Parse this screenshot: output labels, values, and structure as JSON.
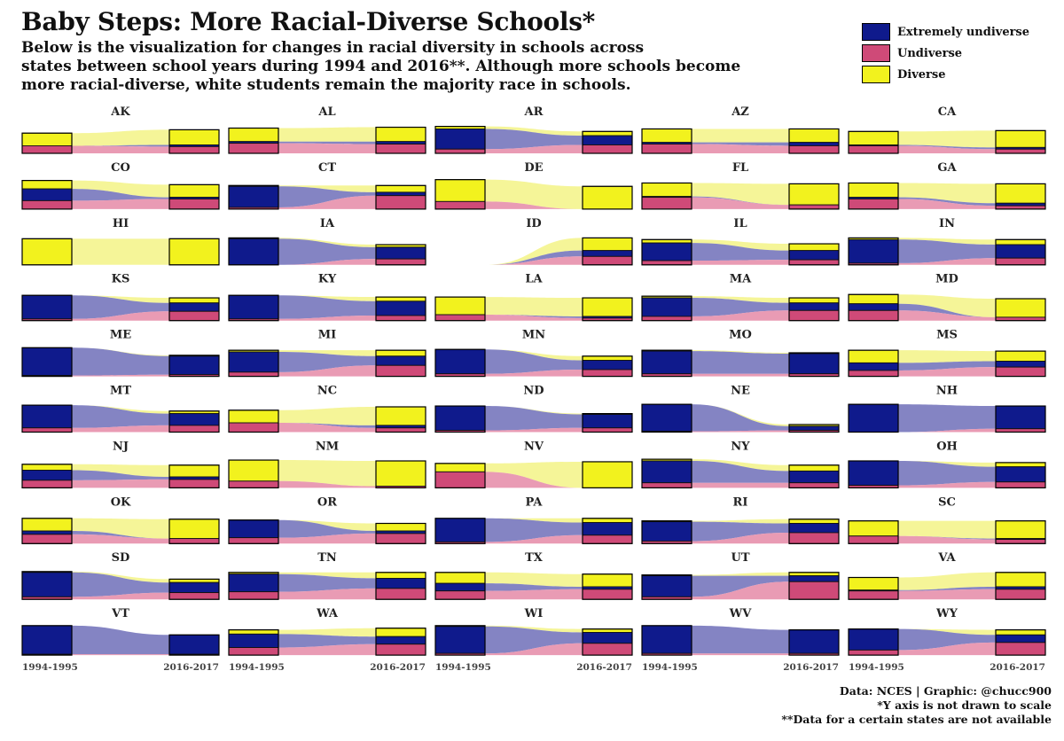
{
  "title": "Baby Steps: More Racial-Diverse Schools*",
  "subtitle_lines": [
    "Below is the visualization for changes in racial diversity in schools across",
    "states between school years during 1994 and 2016**. Although more schools become",
    "more racial-diverse, white students remain the majority race in schools."
  ],
  "legend": [
    {
      "label": "Extremely undiverse",
      "color": "#0f1a8c"
    },
    {
      "label": "Undiverse",
      "color": "#cf4a78"
    },
    {
      "label": "Diverse",
      "color": "#f2f21e"
    }
  ],
  "flow_colors": {
    "Extremely undiverse": "#6e6eb9",
    "Undiverse": "#e58aa7",
    "Diverse": "#f3f386"
  },
  "footer": [
    "Data: NCES | Graphic: @chucc900",
    "*Y axis is not drawn to scale",
    "**Data for a certain states are not available"
  ],
  "chart_data": {
    "type": "alluvial",
    "x_labels": [
      "1994-1995",
      "2016-2017"
    ],
    "categories": [
      "Extremely undiverse",
      "Undiverse",
      "Diverse"
    ],
    "y_axis_note": "not drawn to scale",
    "states": [
      {
        "name": "AK",
        "y1994": [
          0,
          9,
          15
        ],
        "y2016": [
          2,
          8,
          18
        ]
      },
      {
        "name": "AL",
        "y1994": [
          2,
          12,
          16
        ],
        "y2016": [
          3,
          11,
          17
        ]
      },
      {
        "name": "AR",
        "y1994": [
          24,
          5,
          3
        ],
        "y2016": [
          11,
          10,
          5
        ]
      },
      {
        "name": "AZ",
        "y1994": [
          2,
          11,
          16
        ],
        "y2016": [
          4,
          9,
          16
        ]
      },
      {
        "name": "CA",
        "y1994": [
          1,
          9,
          16
        ],
        "y2016": [
          2,
          5,
          20
        ]
      },
      {
        "name": "CO",
        "y1994": [
          14,
          10,
          10
        ],
        "y2016": [
          2,
          12,
          15
        ]
      },
      {
        "name": "CT",
        "y1994": [
          25,
          2,
          1
        ],
        "y2016": [
          4,
          16,
          8
        ]
      },
      {
        "name": "DE",
        "y1994": [
          0,
          9,
          26
        ],
        "y2016": [
          0,
          0,
          27
        ]
      },
      {
        "name": "FL",
        "y1994": [
          1,
          14,
          16
        ],
        "y2016": [
          0,
          5,
          25
        ]
      },
      {
        "name": "GA",
        "y1994": [
          2,
          12,
          17
        ],
        "y2016": [
          3,
          4,
          23
        ]
      },
      {
        "name": "HI",
        "y1994": [
          0,
          0,
          31
        ],
        "y2016": [
          0,
          0,
          31
        ]
      },
      {
        "name": "IA",
        "y1994": [
          31,
          0,
          1
        ],
        "y2016": [
          14,
          7,
          3
        ]
      },
      {
        "name": "ID",
        "y1994": [
          0,
          0,
          0
        ],
        "y2016": [
          7,
          10,
          15
        ]
      },
      {
        "name": "IL",
        "y1994": [
          21,
          5,
          4
        ],
        "y2016": [
          11,
          6,
          8
        ]
      },
      {
        "name": "IN",
        "y1994": [
          28,
          2,
          2
        ],
        "y2016": [
          16,
          8,
          6
        ]
      },
      {
        "name": "KS",
        "y1994": [
          28,
          2,
          0
        ],
        "y2016": [
          10,
          11,
          6
        ]
      },
      {
        "name": "KY",
        "y1994": [
          28,
          2,
          0
        ],
        "y2016": [
          17,
          6,
          5
        ]
      },
      {
        "name": "LA",
        "y1994": [
          0,
          7,
          21
        ],
        "y2016": [
          2,
          3,
          22
        ]
      },
      {
        "name": "MA",
        "y1994": [
          22,
          5,
          2
        ],
        "y2016": [
          9,
          12,
          6
        ]
      },
      {
        "name": "MD",
        "y1994": [
          8,
          12,
          11
        ],
        "y2016": [
          0,
          4,
          22
        ]
      },
      {
        "name": "ME",
        "y1994": [
          33,
          1,
          0
        ],
        "y2016": [
          22,
          2,
          1
        ]
      },
      {
        "name": "MI",
        "y1994": [
          24,
          5,
          2
        ],
        "y2016": [
          11,
          13,
          7
        ]
      },
      {
        "name": "MN",
        "y1994": [
          29,
          3,
          0
        ],
        "y2016": [
          11,
          8,
          5
        ]
      },
      {
        "name": "MO",
        "y1994": [
          27,
          3,
          1
        ],
        "y2016": [
          24,
          3,
          1
        ]
      },
      {
        "name": "MS",
        "y1994": [
          9,
          7,
          15
        ],
        "y2016": [
          7,
          11,
          12
        ]
      },
      {
        "name": "MT",
        "y1994": [
          27,
          5,
          0
        ],
        "y2016": [
          14,
          8,
          3
        ]
      },
      {
        "name": "NC",
        "y1994": [
          0,
          11,
          15
        ],
        "y2016": [
          3,
          5,
          22
        ]
      },
      {
        "name": "ND",
        "y1994": [
          29,
          2,
          0
        ],
        "y2016": [
          16,
          5,
          1
        ]
      },
      {
        "name": "NE",
        "y1994": [
          32,
          1,
          0
        ],
        "y2016": [
          5,
          2,
          2
        ]
      },
      {
        "name": "NH",
        "y1994": [
          33,
          0,
          0
        ],
        "y2016": [
          27,
          4,
          0
        ]
      },
      {
        "name": "NJ",
        "y1994": [
          12,
          9,
          7
        ],
        "y2016": [
          3,
          10,
          14
        ]
      },
      {
        "name": "NM",
        "y1994": [
          0,
          8,
          25
        ],
        "y2016": [
          0,
          2,
          30
        ]
      },
      {
        "name": "NV",
        "y1994": [
          0,
          19,
          10
        ],
        "y2016": [
          0,
          0,
          31
        ]
      },
      {
        "name": "NY",
        "y1994": [
          26,
          6,
          2
        ],
        "y2016": [
          14,
          6,
          7
        ]
      },
      {
        "name": "OH",
        "y1994": [
          29,
          3,
          0
        ],
        "y2016": [
          18,
          7,
          5
        ]
      },
      {
        "name": "OK",
        "y1994": [
          4,
          11,
          15
        ],
        "y2016": [
          0,
          6,
          23
        ]
      },
      {
        "name": "OR",
        "y1994": [
          21,
          7,
          0
        ],
        "y2016": [
          3,
          12,
          9
        ]
      },
      {
        "name": "PA",
        "y1994": [
          28,
          2,
          0
        ],
        "y2016": [
          15,
          10,
          5
        ]
      },
      {
        "name": "RI",
        "y1994": [
          23,
          3,
          1
        ],
        "y2016": [
          11,
          13,
          5
        ]
      },
      {
        "name": "SC",
        "y1994": [
          0,
          9,
          18
        ],
        "y2016": [
          1,
          5,
          21
        ]
      },
      {
        "name": "SD",
        "y1994": [
          29,
          3,
          1
        ],
        "y2016": [
          12,
          8,
          4
        ]
      },
      {
        "name": "TN",
        "y1994": [
          21,
          9,
          2
        ],
        "y2016": [
          12,
          13,
          7
        ]
      },
      {
        "name": "TX",
        "y1994": [
          9,
          10,
          13
        ],
        "y2016": [
          3,
          12,
          15
        ]
      },
      {
        "name": "UT",
        "y1994": [
          25,
          3,
          1
        ],
        "y2016": [
          7,
          21,
          4
        ]
      },
      {
        "name": "VA",
        "y1994": [
          1,
          10,
          15
        ],
        "y2016": [
          3,
          12,
          17
        ]
      },
      {
        "name": "VT",
        "y1994": [
          34,
          1,
          0
        ],
        "y2016": [
          23,
          1,
          0
        ]
      },
      {
        "name": "WA",
        "y1994": [
          16,
          9,
          5
        ],
        "y2016": [
          9,
          13,
          10
        ]
      },
      {
        "name": "WI",
        "y1994": [
          32,
          2,
          1
        ],
        "y2016": [
          13,
          14,
          4
        ]
      },
      {
        "name": "WV",
        "y1994": [
          33,
          2,
          0
        ],
        "y2016": [
          28,
          2,
          0
        ]
      },
      {
        "name": "WY",
        "y1994": [
          25,
          6,
          0
        ],
        "y2016": [
          9,
          15,
          6
        ]
      }
    ]
  }
}
